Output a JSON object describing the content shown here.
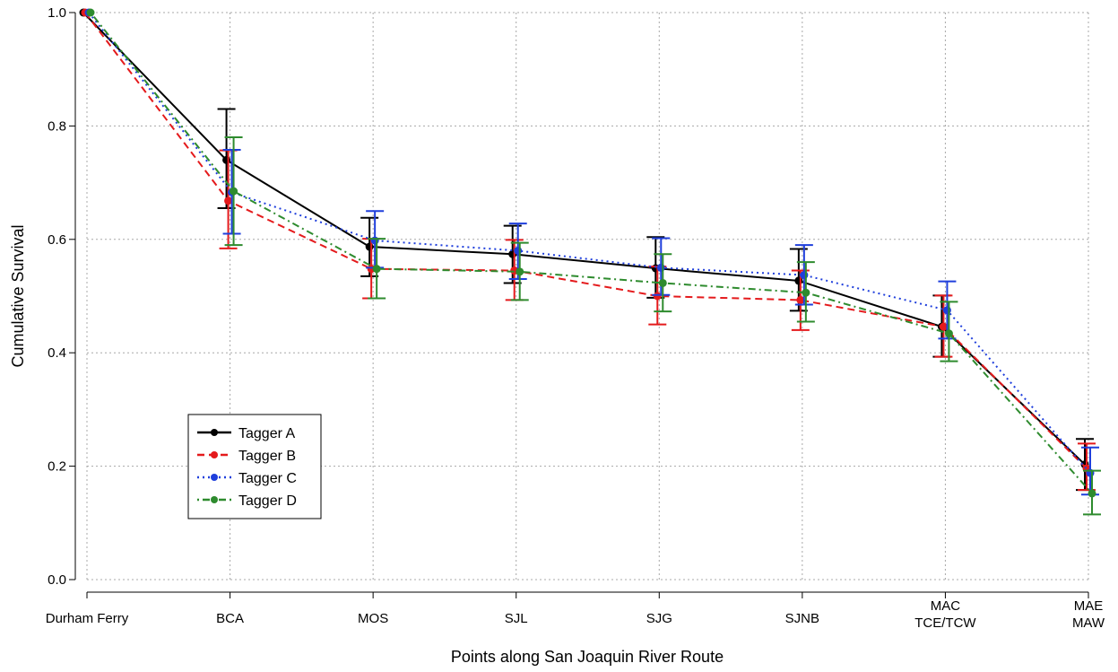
{
  "chart_data": {
    "type": "line",
    "xlabel": "Points along San Joaquin River Route",
    "ylabel": "Cumulative Survival",
    "categories": [
      "Durham Ferry",
      "BCA",
      "MOS",
      "SJL",
      "SJG",
      "SJNB",
      "MAC\nTCE/TCW",
      "MAE\nMAW"
    ],
    "ylim": [
      0,
      1.0
    ],
    "yticks": [
      "0.0",
      "0.2",
      "0.4",
      "0.6",
      "0.8",
      "1.0"
    ],
    "grid": true,
    "legend_position": "bottom-left",
    "series": [
      {
        "name": "Tagger A",
        "color": "#000000",
        "dash": "solid",
        "values": [
          1.0,
          0.74,
          0.587,
          0.574,
          0.549,
          0.527,
          0.446,
          0.203
        ],
        "lower": [
          1.0,
          0.655,
          0.535,
          0.523,
          0.497,
          0.474,
          0.393,
          0.158
        ],
        "upper": [
          1.0,
          0.83,
          0.638,
          0.624,
          0.604,
          0.583,
          0.501,
          0.248
        ]
      },
      {
        "name": "Tagger B",
        "color": "#e41a1c",
        "dash": "dashed",
        "values": [
          1.0,
          0.668,
          0.548,
          0.545,
          0.5,
          0.493,
          0.446,
          0.196
        ],
        "lower": [
          1.0,
          0.584,
          0.496,
          0.493,
          0.45,
          0.44,
          0.393,
          0.158
        ],
        "upper": [
          1.0,
          0.757,
          0.601,
          0.599,
          0.552,
          0.545,
          0.501,
          0.24
        ]
      },
      {
        "name": "Tagger C",
        "color": "#1f3fdc",
        "dash": "dotted",
        "values": [
          1.0,
          0.683,
          0.598,
          0.58,
          0.55,
          0.537,
          0.475,
          0.188
        ],
        "lower": [
          1.0,
          0.61,
          0.55,
          0.53,
          0.502,
          0.485,
          0.425,
          0.15
        ],
        "upper": [
          1.0,
          0.758,
          0.65,
          0.628,
          0.602,
          0.59,
          0.526,
          0.233
        ]
      },
      {
        "name": "Tagger D",
        "color": "#2e8b2e",
        "dash": "dotdash",
        "values": [
          1.0,
          0.685,
          0.548,
          0.543,
          0.523,
          0.506,
          0.434,
          0.152
        ],
        "lower": [
          1.0,
          0.59,
          0.496,
          0.493,
          0.473,
          0.455,
          0.385,
          0.115
        ],
        "upper": [
          1.0,
          0.78,
          0.601,
          0.594,
          0.574,
          0.56,
          0.49,
          0.192
        ]
      }
    ]
  }
}
